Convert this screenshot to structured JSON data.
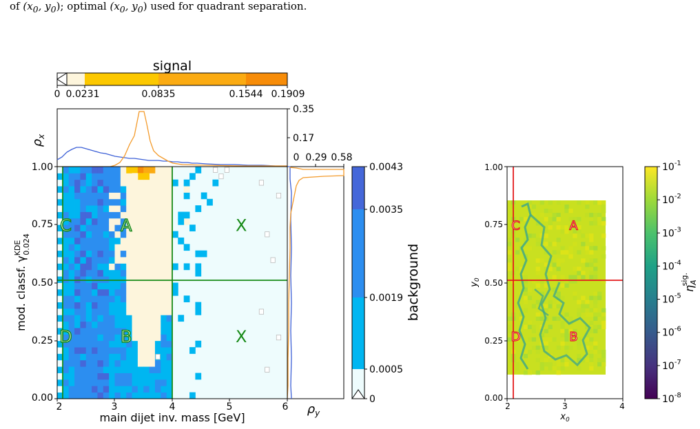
{
  "caption": {
    "prefix": "of ",
    "point_a": "(x",
    "point_a_sub": "0",
    "point_a_mid": ", y",
    "point_a_sub2": "0",
    "point_a_end": ")",
    "middle": "; optimal ",
    "point_b": "(x",
    "point_b_sub": "0",
    "point_b_mid": ", y",
    "point_b_sub2": "0",
    "point_b_end": ")",
    "suffix": " used for quadrant separation."
  },
  "colors": {
    "signal_low": "#fdf5dc",
    "signal_mid1": "#fcc800",
    "signal_mid2": "#fbab12",
    "signal_high": "#f78c08",
    "bkg_low": "#eefcfd",
    "bkg_mid1": "#00b6f1",
    "bkg_mid2": "#2c8ef0",
    "bkg_high": "#4567d9",
    "quadrant_line_left": "#178a17",
    "quadrant_line_right": "#e41a1c",
    "signal_hist": "#f39a2a",
    "bkg_hist": "#3b5fd6"
  },
  "chart_data": [
    {
      "type": "heatmap",
      "xlabel": "main dijet inv. mass [GeV]",
      "ylabel": "mod. classf. γ",
      "ylabel_sup": "KDE",
      "ylabel_sub": "0.024",
      "xlim": [
        2,
        6
      ],
      "ylim": [
        0.0,
        1.0
      ],
      "xticks": [
        "2",
        "3",
        "4",
        "5",
        "6"
      ],
      "yticks": [
        "0.00",
        "0.25",
        "0.50",
        "0.75",
        "1.00"
      ],
      "quadrant_cut": {
        "x0": 4.0,
        "y0": 0.51,
        "x_left": 2.1
      },
      "quadrant_labels": [
        {
          "text": "C",
          "x": 2.15,
          "y": 0.75
        },
        {
          "text": "A",
          "x": 3.2,
          "y": 0.75
        },
        {
          "text": "X",
          "x": 5.2,
          "y": 0.75
        },
        {
          "text": "D",
          "x": 2.15,
          "y": 0.27
        },
        {
          "text": "B",
          "x": 3.2,
          "y": 0.27
        },
        {
          "text": "X",
          "x": 5.2,
          "y": 0.27
        }
      ],
      "top_marginal": {
        "ylabel": "ρ",
        "ylabel_sub": "x",
        "yticks": [
          "0.17",
          "0.35"
        ],
        "yrange": [
          0,
          0.35
        ]
      },
      "right_marginal": {
        "xlabel": "ρ",
        "xlabel_sub": "y",
        "xticks": [
          "0",
          "0.29",
          "0.58"
        ],
        "xrange": [
          0,
          0.58
        ]
      },
      "signal_colorbar": {
        "title": "signal",
        "ticks": [
          "0",
          "0.0231",
          "0.0835",
          "0.1544",
          "0.1909"
        ],
        "bounds": [
          0,
          0.0231,
          0.0835,
          0.1544,
          0.1909
        ]
      },
      "background_colorbar": {
        "title": "background",
        "ticks": [
          "0",
          "0.0005",
          "0.0019",
          "0.0035",
          "0.0043"
        ],
        "bounds": [
          0,
          0.0005,
          0.0019,
          0.0035,
          0.0043
        ]
      }
    },
    {
      "type": "heatmap",
      "xlabel": "x",
      "xlabel_sub": "0",
      "ylabel": "y",
      "ylabel_sub": "0",
      "xlim": [
        2,
        4
      ],
      "ylim": [
        0.0,
        1.0
      ],
      "xticks": [
        "2",
        "3",
        "4"
      ],
      "yticks": [
        "0.00",
        "0.25",
        "0.50",
        "0.75",
        "1.00"
      ],
      "optimal_cut": {
        "x0": 2.1,
        "y0": 0.51
      },
      "quadrant_labels": [
        {
          "text": "C",
          "x": 2.15,
          "y": 0.75
        },
        {
          "text": "A",
          "x": 3.15,
          "y": 0.75
        },
        {
          "text": "D",
          "x": 2.15,
          "y": 0.27
        },
        {
          "text": "B",
          "x": 3.15,
          "y": 0.27
        }
      ],
      "colorbar": {
        "label": "η",
        "label_sub": "A",
        "label_sup": "sig.",
        "scale": "log",
        "ticks": [
          "-1",
          "-2",
          "-3",
          "-4",
          "-5",
          "-6",
          "-7",
          "-8"
        ],
        "tick_base": "10"
      }
    }
  ]
}
